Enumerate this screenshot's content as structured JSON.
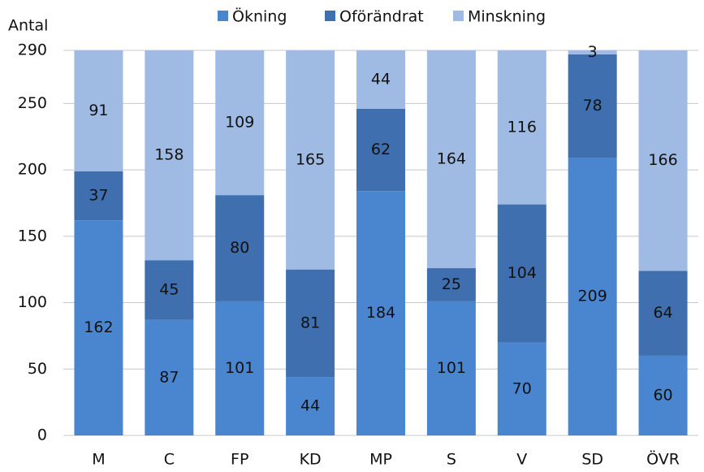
{
  "chart_data": {
    "type": "stacked_bar",
    "y_label": "Antal",
    "categories": [
      "M",
      "C",
      "FP",
      "KD",
      "MP",
      "S",
      "V",
      "SD",
      "ÖVR"
    ],
    "series": [
      {
        "name": "Ökning",
        "color": "#4a86d0",
        "values": [
          162,
          87,
          101,
          44,
          184,
          101,
          70,
          209,
          60
        ]
      },
      {
        "name": "Oförändrat",
        "color": "#3f6fae",
        "values": [
          37,
          45,
          80,
          81,
          62,
          25,
          104,
          78,
          64
        ]
      },
      {
        "name": "Minskning",
        "color": "#9fbbe3",
        "values": [
          91,
          158,
          109,
          165,
          44,
          164,
          116,
          3,
          166
        ]
      }
    ],
    "ylim": [
      0,
      290
    ],
    "yticks": [
      0,
      50,
      100,
      150,
      200,
      250,
      290
    ],
    "grid": true,
    "legend": "top"
  }
}
